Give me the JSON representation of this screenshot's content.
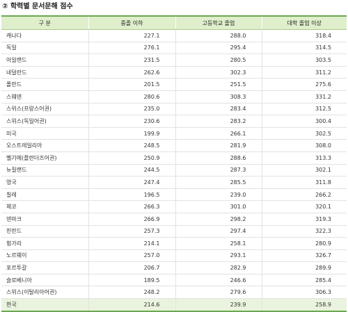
{
  "title": "② 학력별 문서문해 점수",
  "headers": [
    "구 분",
    "중졸 이하",
    "고등학교 졸업",
    "대학 졸업 이상"
  ],
  "rows": [
    [
      "캐나다",
      "227.1",
      "288.0",
      "318.4"
    ],
    [
      "독일",
      "276.1",
      "295.4",
      "314.5"
    ],
    [
      "아일랜드",
      "231.5",
      "280.5",
      "303.5"
    ],
    [
      "네덜란드",
      "262.6",
      "302.3",
      "311.2"
    ],
    [
      "폴란드",
      "201.5",
      "251.5",
      "275.6"
    ],
    [
      "스웨덴",
      "280.6",
      "308.3",
      "331.2"
    ],
    [
      "스위스(프랑스어권)",
      "235.0",
      "283.4",
      "312.5"
    ],
    [
      "스위스(독일어권)",
      "230.6",
      "283.2",
      "300.4"
    ],
    [
      "미국",
      "199.9",
      "266.1",
      "302.5"
    ],
    [
      "오스트레일리아",
      "248.5",
      "281.9",
      "308.0"
    ],
    [
      "벨기에(플란더즈어권)",
      "250.9",
      "288.6",
      "313.3"
    ],
    [
      "뉴질랜드",
      "244.5",
      "287.3",
      "302.1"
    ],
    [
      "영국",
      "247.4",
      "285.5",
      "311.8"
    ],
    [
      "칠레",
      "196.5",
      "239.0",
      "266.2"
    ],
    [
      "체코",
      "266.3",
      "301.0",
      "320.1"
    ],
    [
      "덴마크",
      "266.9",
      "298.2",
      "319.3"
    ],
    [
      "핀란드",
      "257.3",
      "297.4",
      "322.3"
    ],
    [
      "헝가리",
      "214.1",
      "258.1",
      "280.9"
    ],
    [
      "노르웨이",
      "257.0",
      "293.1",
      "326.7"
    ],
    [
      "포르투갈",
      "206.7",
      "282.9",
      "289.9"
    ],
    [
      "슬로베니아",
      "189.5",
      "246.6",
      "285.4"
    ],
    [
      "스위스(이탈리아어권)",
      "248.2",
      "279.6",
      "306.3"
    ],
    [
      "한국",
      "214.6",
      "239.9",
      "258.9"
    ]
  ],
  "colors": {
    "header_bg": "#dfeecb",
    "accent_line": "#6aa84f",
    "highlight_row_bg": "#eaf3de"
  }
}
